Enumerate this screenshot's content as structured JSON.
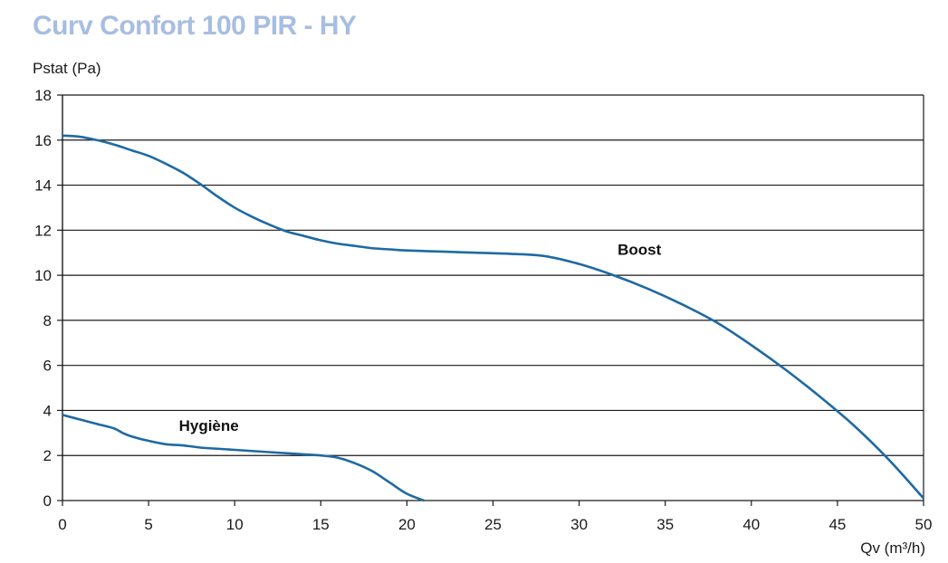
{
  "colors": {
    "title": "#a7bde2",
    "curve": "#1e6aa3",
    "grid": "#1a1a1a",
    "text": "#1a1a1a"
  },
  "chart_data": {
    "type": "line",
    "title": "Curv Confort 100 PIR - HY",
    "ylabel": "Pstat (Pa)",
    "xlabel": "Qv (m³/h)",
    "xlim": [
      0,
      50
    ],
    "ylim": [
      0,
      18
    ],
    "xticks": [
      0,
      5,
      10,
      15,
      20,
      25,
      30,
      35,
      40,
      45,
      50
    ],
    "yticks": [
      0,
      2,
      4,
      6,
      8,
      10,
      12,
      14,
      16,
      18
    ],
    "grid": "horizontal",
    "series": [
      {
        "name": "Boost",
        "x": [
          0,
          1,
          2,
          3,
          4,
          5,
          6,
          7,
          8,
          9,
          10,
          11,
          12,
          13,
          14,
          15,
          16,
          17,
          18,
          19,
          20,
          22,
          24,
          26,
          28,
          30,
          32,
          34,
          36,
          38,
          40,
          42,
          44,
          46,
          48,
          50
        ],
        "y": [
          16.2,
          16.15,
          16.0,
          15.8,
          15.55,
          15.3,
          14.95,
          14.55,
          14.05,
          13.5,
          13.0,
          12.6,
          12.25,
          11.95,
          11.75,
          11.55,
          11.4,
          11.3,
          11.2,
          11.15,
          11.1,
          11.05,
          11.0,
          10.95,
          10.85,
          10.5,
          10.0,
          9.4,
          8.7,
          7.9,
          6.9,
          5.8,
          4.6,
          3.3,
          1.8,
          0.1
        ]
      },
      {
        "name": "Hygiène",
        "x": [
          0,
          1,
          2,
          3,
          3.5,
          4,
          5,
          6,
          7,
          8,
          9,
          10,
          11,
          12,
          13,
          14,
          15,
          16,
          17,
          18,
          19,
          20,
          21
        ],
        "y": [
          3.8,
          3.6,
          3.4,
          3.2,
          3.0,
          2.85,
          2.65,
          2.5,
          2.45,
          2.35,
          2.3,
          2.25,
          2.2,
          2.15,
          2.1,
          2.05,
          2.0,
          1.9,
          1.65,
          1.3,
          0.8,
          0.3,
          0.0
        ]
      }
    ],
    "annotations": [
      {
        "text": "Boost",
        "x": 33.5,
        "y": 10.9
      },
      {
        "text": "Hygiène",
        "x": 8.5,
        "y": 3.1
      }
    ]
  }
}
